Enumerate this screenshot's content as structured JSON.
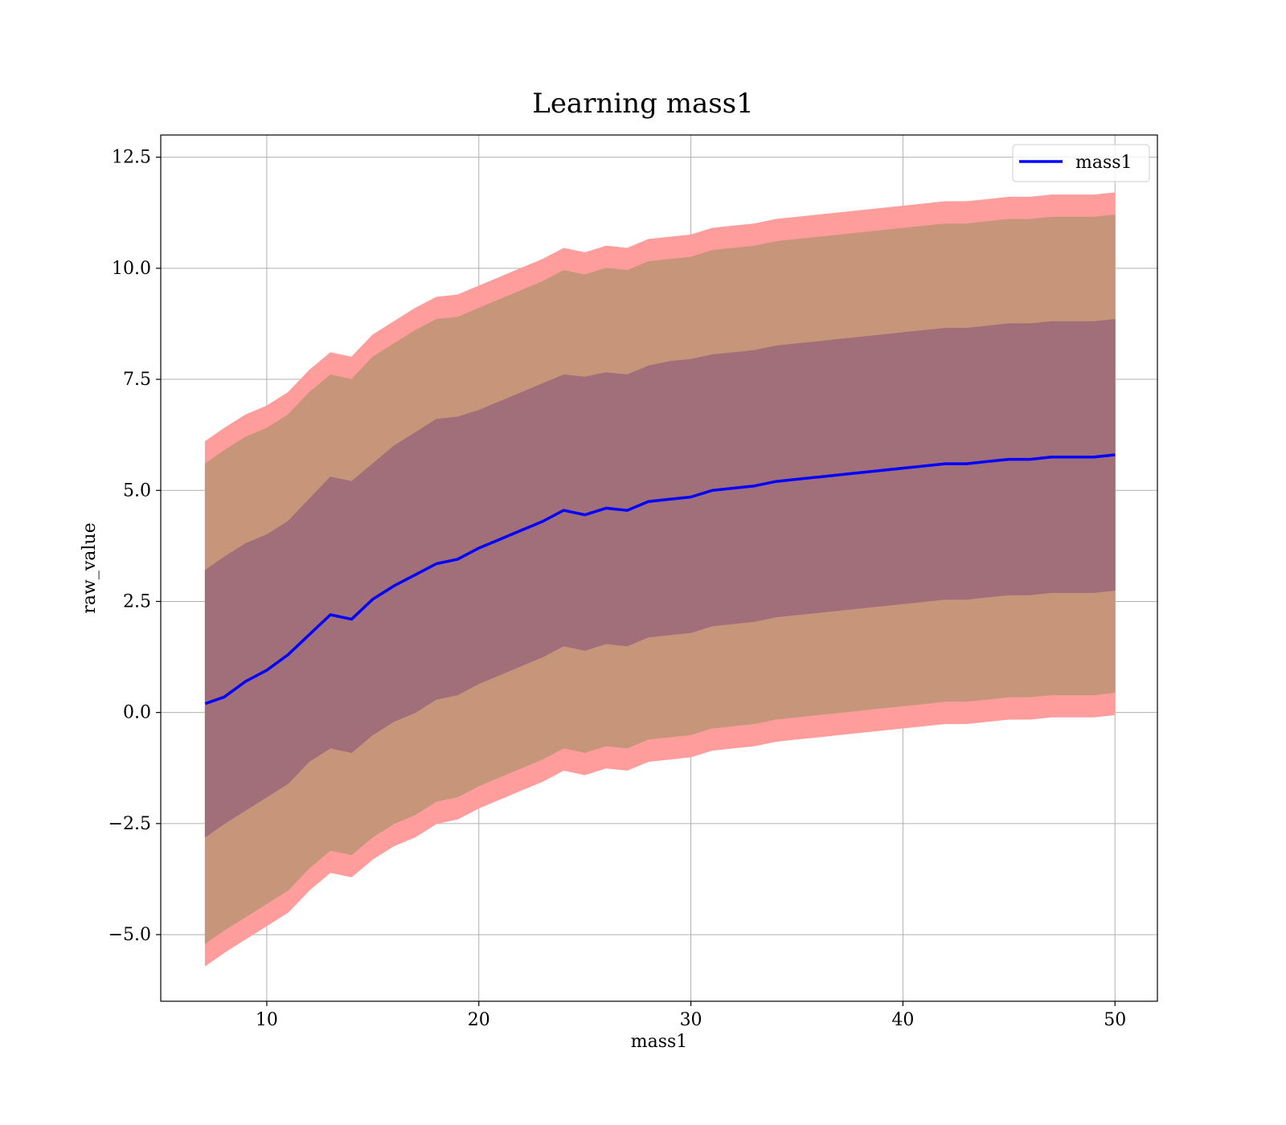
{
  "chart_data": {
    "type": "area",
    "title": "Learning mass1",
    "xlabel": "mass1",
    "ylabel": "raw_value",
    "xlim": [
      5,
      52
    ],
    "ylim": [
      -6.5,
      13
    ],
    "grid": true,
    "legend_position": "top-right",
    "x_ticks": [
      10,
      20,
      30,
      40,
      50
    ],
    "x_tick_labels": [
      "10",
      "20",
      "30",
      "40",
      "50"
    ],
    "y_ticks": [
      -5,
      -2.5,
      0,
      2.5,
      5,
      7.5,
      10,
      12.5
    ],
    "y_tick_labels": [
      "−5.0",
      "−2.5",
      "0.0",
      "2.5",
      "5.0",
      "7.5",
      "10.0",
      "12.5"
    ],
    "colors": {
      "line": "#0000ff",
      "outer_band": "#ff9d9d",
      "middle_band": "#c7967a",
      "inner_band": "#a06f7a",
      "grid": "#b0b0b0"
    },
    "x": [
      7.1,
      8,
      9,
      10,
      11,
      12,
      13,
      14,
      15,
      16,
      17,
      18,
      19,
      20,
      21,
      22,
      23,
      24,
      25,
      26,
      27,
      28,
      29,
      30,
      31,
      32,
      33,
      34,
      35,
      36,
      37,
      38,
      39,
      40,
      41,
      42,
      43,
      44,
      45,
      46,
      47,
      48,
      49,
      50
    ],
    "series": [
      {
        "name": "mass1",
        "role": "mean",
        "values": [
          0.2,
          0.35,
          0.7,
          0.95,
          1.3,
          1.75,
          2.2,
          2.1,
          2.55,
          2.85,
          3.1,
          3.35,
          3.45,
          3.7,
          3.9,
          4.1,
          4.3,
          4.55,
          4.45,
          4.6,
          4.55,
          4.75,
          4.8,
          4.85,
          5.0,
          5.05,
          5.1,
          5.2,
          5.25,
          5.3,
          5.35,
          5.4,
          5.45,
          5.5,
          5.55,
          5.6,
          5.6,
          5.65,
          5.7,
          5.7,
          5.75,
          5.75,
          5.75,
          5.8
        ]
      },
      {
        "role": "inner_band",
        "upper": [
          3.2,
          3.5,
          3.8,
          4.0,
          4.3,
          4.8,
          5.3,
          5.2,
          5.6,
          6.0,
          6.3,
          6.6,
          6.65,
          6.8,
          7.0,
          7.2,
          7.4,
          7.6,
          7.55,
          7.65,
          7.6,
          7.8,
          7.9,
          7.95,
          8.05,
          8.1,
          8.15,
          8.25,
          8.3,
          8.35,
          8.4,
          8.45,
          8.5,
          8.55,
          8.6,
          8.65,
          8.65,
          8.7,
          8.75,
          8.75,
          8.8,
          8.8,
          8.8,
          8.85
        ],
        "lower": [
          -2.8,
          -2.5,
          -2.2,
          -1.9,
          -1.6,
          -1.1,
          -0.8,
          -0.9,
          -0.5,
          -0.2,
          0.0,
          0.3,
          0.4,
          0.65,
          0.85,
          1.05,
          1.25,
          1.5,
          1.4,
          1.55,
          1.5,
          1.7,
          1.75,
          1.8,
          1.95,
          2.0,
          2.05,
          2.15,
          2.2,
          2.25,
          2.3,
          2.35,
          2.4,
          2.45,
          2.5,
          2.55,
          2.55,
          2.6,
          2.65,
          2.65,
          2.7,
          2.7,
          2.7,
          2.75
        ]
      },
      {
        "role": "middle_band",
        "upper": [
          5.6,
          5.9,
          6.2,
          6.4,
          6.7,
          7.2,
          7.6,
          7.5,
          8.0,
          8.3,
          8.6,
          8.85,
          8.9,
          9.1,
          9.3,
          9.5,
          9.7,
          9.95,
          9.85,
          10.0,
          9.95,
          10.15,
          10.2,
          10.25,
          10.4,
          10.45,
          10.5,
          10.6,
          10.65,
          10.7,
          10.75,
          10.8,
          10.85,
          10.9,
          10.95,
          11.0,
          11.0,
          11.05,
          11.1,
          11.1,
          11.15,
          11.15,
          11.15,
          11.2
        ],
        "lower": [
          -5.2,
          -4.9,
          -4.6,
          -4.3,
          -4.0,
          -3.5,
          -3.1,
          -3.2,
          -2.8,
          -2.5,
          -2.3,
          -2.0,
          -1.9,
          -1.65,
          -1.45,
          -1.25,
          -1.05,
          -0.8,
          -0.9,
          -0.75,
          -0.8,
          -0.6,
          -0.55,
          -0.5,
          -0.35,
          -0.3,
          -0.25,
          -0.15,
          -0.1,
          -0.05,
          0.0,
          0.05,
          0.1,
          0.15,
          0.2,
          0.25,
          0.25,
          0.3,
          0.35,
          0.35,
          0.4,
          0.4,
          0.4,
          0.45
        ]
      },
      {
        "role": "outer_band",
        "upper": [
          6.1,
          6.4,
          6.7,
          6.9,
          7.2,
          7.7,
          8.1,
          8.0,
          8.5,
          8.8,
          9.1,
          9.35,
          9.4,
          9.6,
          9.8,
          10.0,
          10.2,
          10.45,
          10.35,
          10.5,
          10.45,
          10.65,
          10.7,
          10.75,
          10.9,
          10.95,
          11.0,
          11.1,
          11.15,
          11.2,
          11.25,
          11.3,
          11.35,
          11.4,
          11.45,
          11.5,
          11.5,
          11.55,
          11.6,
          11.6,
          11.65,
          11.65,
          11.65,
          11.7
        ],
        "lower": [
          -5.7,
          -5.4,
          -5.1,
          -4.8,
          -4.5,
          -4.0,
          -3.6,
          -3.7,
          -3.3,
          -3.0,
          -2.8,
          -2.5,
          -2.4,
          -2.15,
          -1.95,
          -1.75,
          -1.55,
          -1.3,
          -1.4,
          -1.25,
          -1.3,
          -1.1,
          -1.05,
          -1.0,
          -0.85,
          -0.8,
          -0.75,
          -0.65,
          -0.6,
          -0.55,
          -0.5,
          -0.45,
          -0.4,
          -0.35,
          -0.3,
          -0.25,
          -0.25,
          -0.2,
          -0.15,
          -0.15,
          -0.1,
          -0.1,
          -0.1,
          -0.05
        ]
      }
    ]
  }
}
